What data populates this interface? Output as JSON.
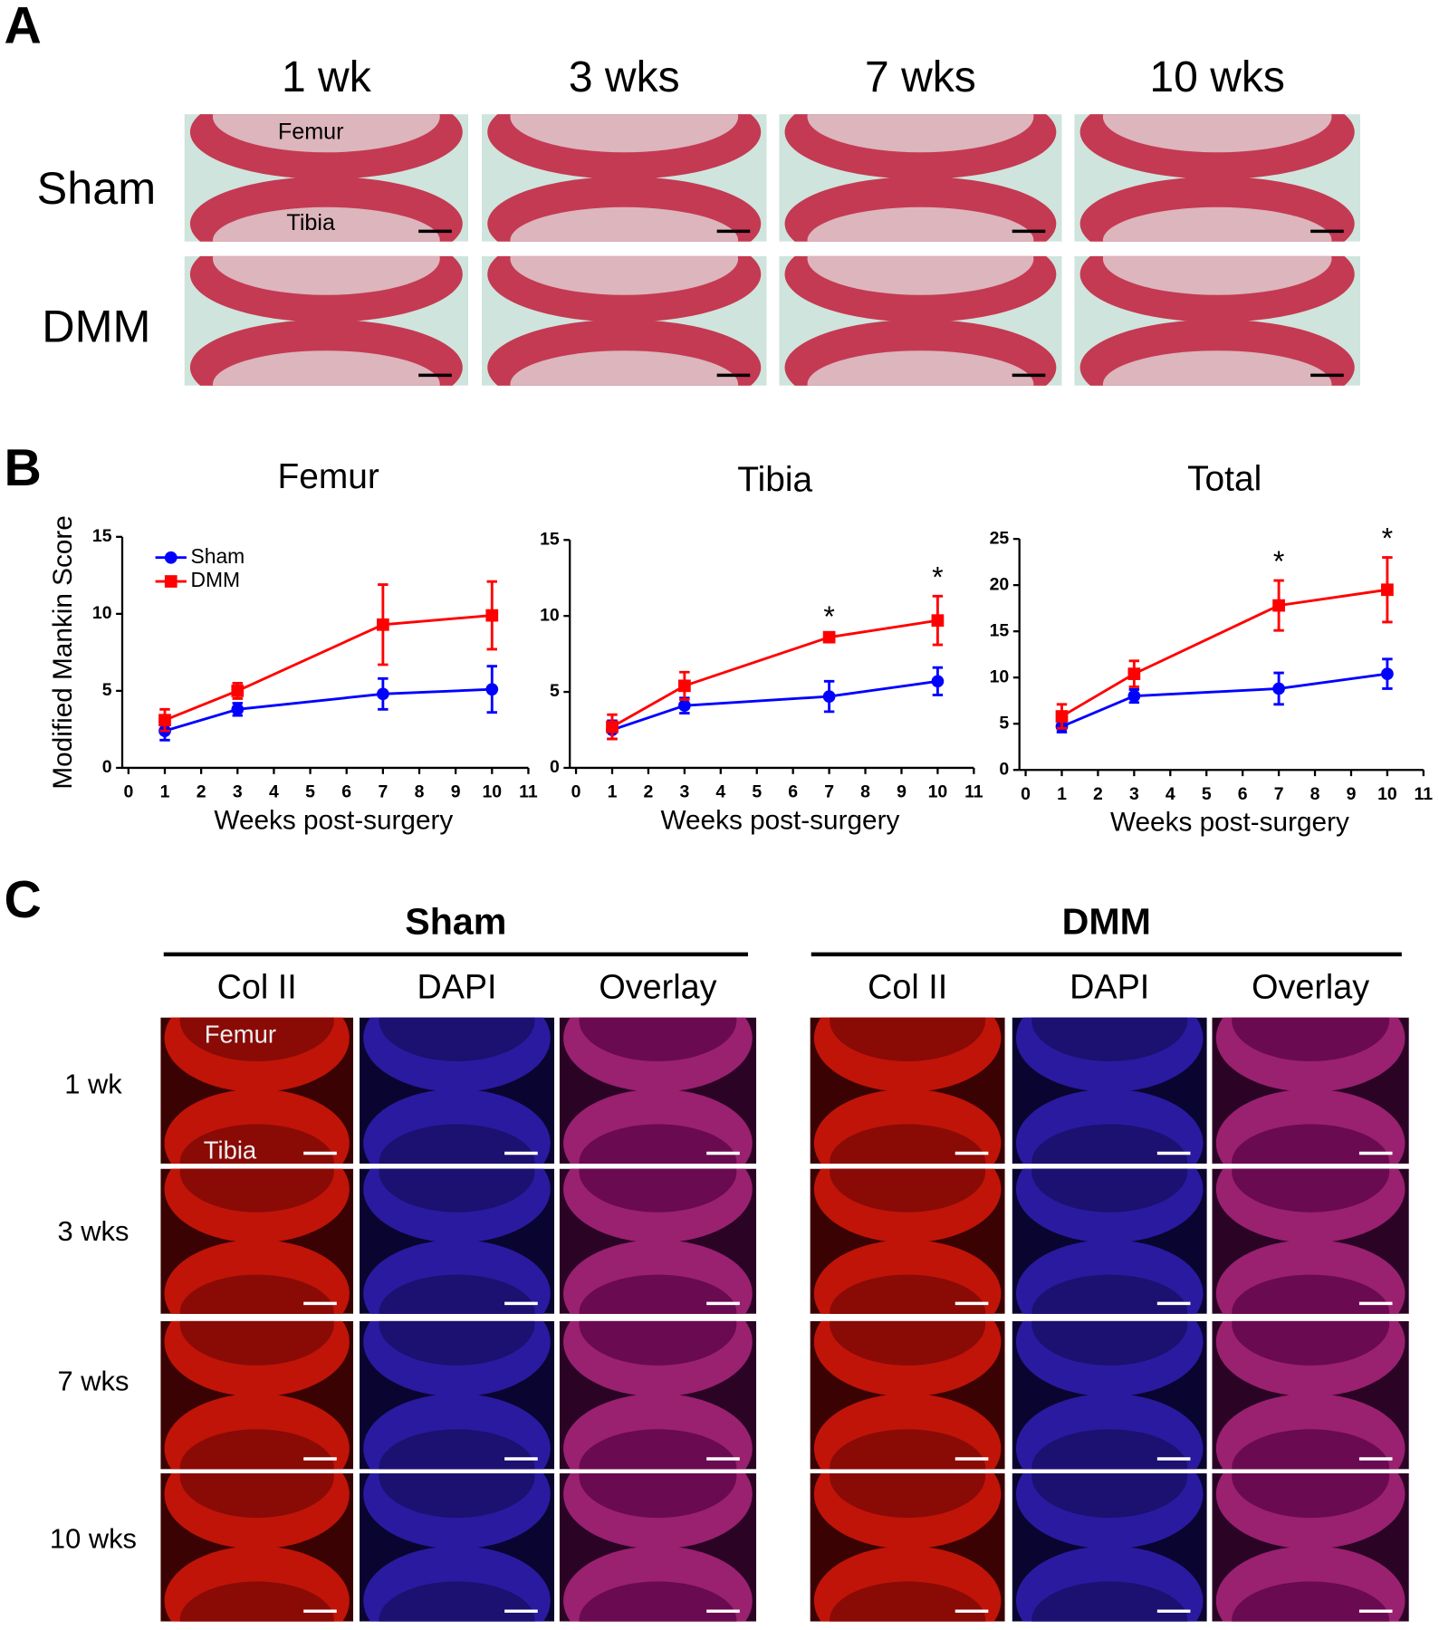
{
  "panel_a": {
    "label": "A",
    "columns": [
      "1 wk",
      "3 wks",
      "7 wks",
      "10 wks"
    ],
    "rows": [
      "Sham",
      "DMM"
    ],
    "femur_label": "Femur",
    "tibia_label": "Tibia"
  },
  "panel_b": {
    "label": "B"
  },
  "chart_data": [
    {
      "type": "line",
      "title": "Femur",
      "x": [
        1,
        3,
        7,
        10
      ],
      "series": [
        {
          "name": "Sham",
          "color": "#0000ff",
          "marker": "circle",
          "values": [
            2.4,
            3.8,
            4.8,
            5.1
          ],
          "errors": [
            0.6,
            0.4,
            1.0,
            1.5
          ]
        },
        {
          "name": "DMM",
          "color": "#ff0000",
          "marker": "square",
          "values": [
            3.1,
            5.0,
            9.3,
            9.9
          ],
          "errors": [
            0.7,
            0.5,
            2.6,
            2.2
          ]
        }
      ],
      "xlim": [
        0,
        11
      ],
      "xticks": [
        0,
        1,
        2,
        3,
        4,
        5,
        6,
        7,
        8,
        9,
        10,
        11
      ],
      "ylim": [
        0,
        15
      ],
      "yticks": [
        0,
        5,
        10,
        15
      ],
      "xlabel": "Weeks post-surgery",
      "ylabel": "Modified Mankin Score",
      "legend": "upper left"
    },
    {
      "type": "line",
      "title": "Tibia",
      "x": [
        1,
        3,
        7,
        10
      ],
      "series": [
        {
          "color": "#0000ff",
          "marker": "circle",
          "values": [
            2.5,
            4.1,
            4.7,
            5.7
          ],
          "errors": [
            0.6,
            0.5,
            1.0,
            0.9
          ]
        },
        {
          "color": "#ff0000",
          "marker": "square",
          "values": [
            2.7,
            5.4,
            8.6,
            9.7
          ],
          "errors": [
            0.8,
            0.9,
            0.1,
            1.6
          ]
        }
      ],
      "xlim": [
        0,
        11
      ],
      "xticks": [
        0,
        1,
        2,
        3,
        4,
        5,
        6,
        7,
        8,
        9,
        10,
        11
      ],
      "ylim": [
        0,
        15
      ],
      "yticks": [
        0,
        5,
        10,
        15
      ],
      "xlabel": "Weeks post-surgery",
      "annotations": [
        {
          "x": 7,
          "text": "*"
        },
        {
          "x": 10,
          "text": "*"
        }
      ]
    },
    {
      "type": "line",
      "title": "Total",
      "x": [
        1,
        3,
        7,
        10
      ],
      "series": [
        {
          "color": "#0000ff",
          "marker": "circle",
          "values": [
            4.7,
            8.0,
            8.8,
            10.4
          ],
          "errors": [
            0.6,
            0.7,
            1.7,
            1.6
          ]
        },
        {
          "color": "#ff0000",
          "marker": "square",
          "values": [
            5.8,
            10.4,
            17.8,
            19.5
          ],
          "errors": [
            1.3,
            1.4,
            2.7,
            3.5
          ]
        }
      ],
      "xlim": [
        0,
        11
      ],
      "xticks": [
        0,
        1,
        2,
        3,
        4,
        5,
        6,
        7,
        8,
        9,
        10,
        11
      ],
      "ylim": [
        0,
        25
      ],
      "yticks": [
        0,
        5,
        10,
        15,
        20,
        25
      ],
      "xlabel": "Weeks post-surgery",
      "annotations": [
        {
          "x": 7,
          "text": "*"
        },
        {
          "x": 10,
          "text": "*"
        }
      ]
    }
  ],
  "panel_c": {
    "label": "C",
    "groups": [
      {
        "name": "Sham",
        "columns": [
          "Col II",
          "DAPI",
          "Overlay"
        ]
      },
      {
        "name": "DMM",
        "columns": [
          "Col II",
          "DAPI",
          "Overlay"
        ]
      }
    ],
    "rows": [
      "1 wk",
      "3 wks",
      "7 wks",
      "10 wks"
    ],
    "femur_label": "Femur",
    "tibia_label": "Tibia"
  }
}
